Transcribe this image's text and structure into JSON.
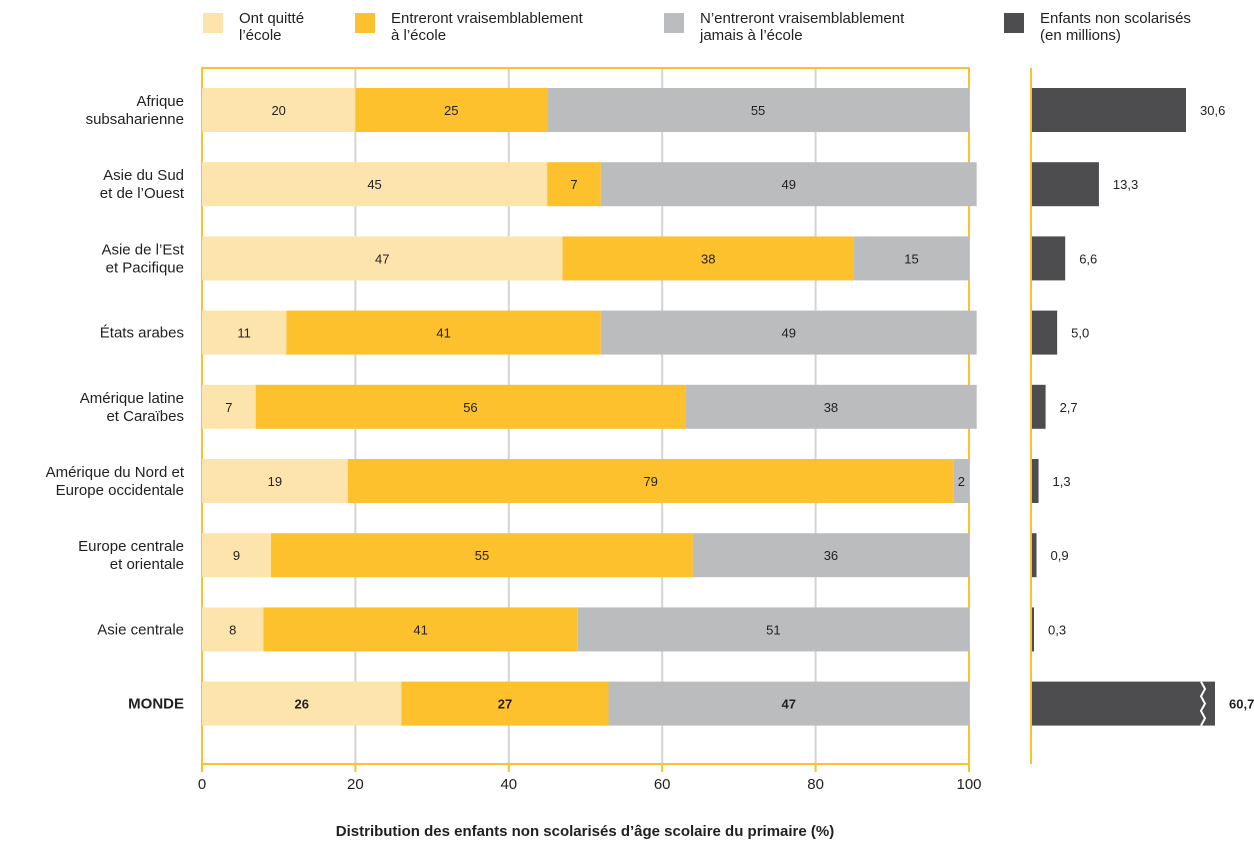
{
  "colors": {
    "left_school": "#fde4ad",
    "will_enter": "#fcc12d",
    "never_enter": "#bbbcbe",
    "out_of_school": "#4d4d4f",
    "frame": "#fcc12d",
    "grid": "#d4d4d4",
    "text": "#231f20"
  },
  "legend": [
    {
      "key": "left_school",
      "line1": "Ont quitté",
      "line2": "l’école"
    },
    {
      "key": "will_enter",
      "line1": "Entreront vraisemblablement",
      "line2": "à l’école"
    },
    {
      "key": "never_enter",
      "line1": "N’entreront vraisemblablement",
      "line2": "jamais à l’école"
    },
    {
      "key": "out_of_school",
      "line1": "Enfants non scolarisés",
      "line2": "(en millions)"
    }
  ],
  "chart_data": [
    {
      "type": "bar",
      "orientation": "horizontal",
      "stacked": true,
      "xlabel": "Distribution des enfants non scolarisés d’âge scolaire du primaire (%)",
      "xlim": [
        0,
        100
      ],
      "xticks": [
        "0",
        "20",
        "40",
        "60",
        "80",
        "100"
      ],
      "grid": true,
      "categories": [
        [
          "Afrique",
          "subsaharienne"
        ],
        [
          "Asie du Sud",
          "et de l’Ouest"
        ],
        [
          "Asie de l’Est",
          "et Pacifique"
        ],
        [
          "États arabes"
        ],
        [
          "Amérique latine",
          "et Caraïbes"
        ],
        [
          "Amérique du Nord et",
          "Europe occidentale"
        ],
        [
          "Europe centrale",
          "et orientale"
        ],
        [
          "Asie centrale"
        ],
        [
          "MONDE"
        ]
      ],
      "series": [
        {
          "key": "left_school",
          "values": [
            20,
            45,
            47,
            11,
            7,
            19,
            9,
            8,
            26
          ]
        },
        {
          "key": "will_enter",
          "values": [
            25,
            7,
            38,
            41,
            56,
            79,
            55,
            41,
            27
          ]
        },
        {
          "key": "never_enter",
          "values": [
            55,
            49,
            15,
            49,
            38,
            2,
            36,
            51,
            47
          ]
        }
      ]
    },
    {
      "type": "bar",
      "orientation": "horizontal",
      "values": [
        30.6,
        13.3,
        6.6,
        5.0,
        2.7,
        1.3,
        0.9,
        0.3,
        60.7
      ],
      "labels": [
        "30,6",
        "13,3",
        "6,6",
        "5,0",
        "2,7",
        "1,3",
        "0,9",
        "0,3",
        "60,7"
      ],
      "axis_break_on_last": true
    }
  ]
}
